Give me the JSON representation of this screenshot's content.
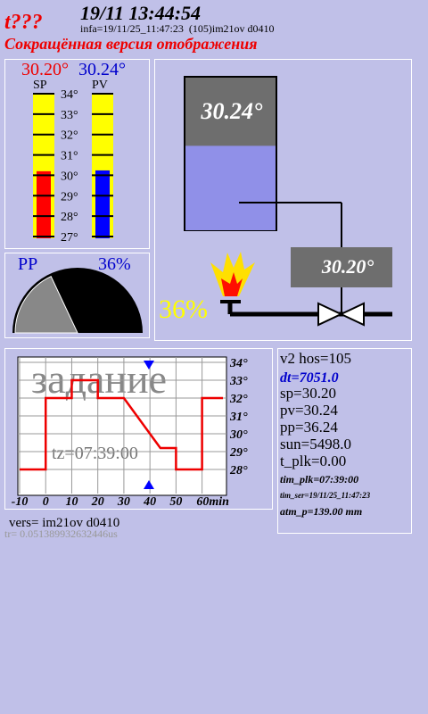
{
  "header": {
    "title": "t???",
    "datetime": "19/11 13:44:54",
    "info": "infa=19/11/25_11:47:23  (105)im21ov d0410",
    "subtitle": "Сокращённая версия отображения"
  },
  "thermo": {
    "sp_label": "30.20°",
    "pv_label": "30.24°",
    "sp_name": "SP",
    "pv_name": "PV",
    "sp": 30.2,
    "pv": 30.24,
    "lim": [
      27,
      34
    ],
    "ticks": [
      {
        "value": 34,
        "label": "34°"
      },
      {
        "value": 33,
        "label": "33°"
      },
      {
        "value": 32,
        "label": "32°"
      },
      {
        "value": 31,
        "label": "31°"
      },
      {
        "value": 30,
        "label": "30°"
      },
      {
        "value": 29,
        "label": "29°"
      },
      {
        "value": 28,
        "label": "28°"
      },
      {
        "value": 27,
        "label": "27°"
      }
    ]
  },
  "gauge": {
    "name": "PP",
    "value": 36,
    "value_label": "36%",
    "range": [
      0,
      100
    ]
  },
  "process": {
    "tank_label": "30.24°",
    "tank_level": 55,
    "tank_range": [
      0,
      100
    ],
    "setpoint_label": "30.20°",
    "power_label": "36%"
  },
  "profile": {
    "title": "задание",
    "tz": "tz=07:39:00",
    "xlim": [
      -10,
      68
    ],
    "ylim": [
      26.8,
      34.2
    ],
    "xticks": [
      -10,
      0,
      10,
      20,
      30,
      40,
      50,
      {
        "value": 60,
        "label": "60min"
      }
    ],
    "yticks": [
      {
        "value": 34,
        "label": "34°"
      },
      {
        "value": 33,
        "label": "33°"
      },
      {
        "value": 32,
        "label": "32°"
      },
      {
        "value": 31,
        "label": "31°"
      },
      {
        "value": 30,
        "label": "30°"
      },
      {
        "value": 29,
        "label": "29°"
      },
      {
        "value": 28,
        "label": "28°"
      }
    ],
    "x": [
      -10,
      0,
      0,
      10,
      10,
      20,
      20,
      30,
      44,
      50,
      50,
      60,
      60,
      68
    ],
    "values": [
      28,
      28,
      32,
      32,
      33,
      33,
      32,
      32,
      29.2,
      29.2,
      28,
      28,
      32,
      32
    ],
    "now": 39.6
  },
  "status": [
    "v2 hos=105",
    "dt=7051.0",
    "sp=30.20",
    "pv=30.24",
    "pp=36.24",
    "sun=5498.0",
    "t_plk=0.00",
    "tim_plk=07:39:00",
    "tim_ser=19/11/25_11:47:23",
    "atm_p=139.00 mm"
  ],
  "footer": {
    "version": "vers= im21ov d0410",
    "timing": "tr= 0.051389932632446us"
  }
}
